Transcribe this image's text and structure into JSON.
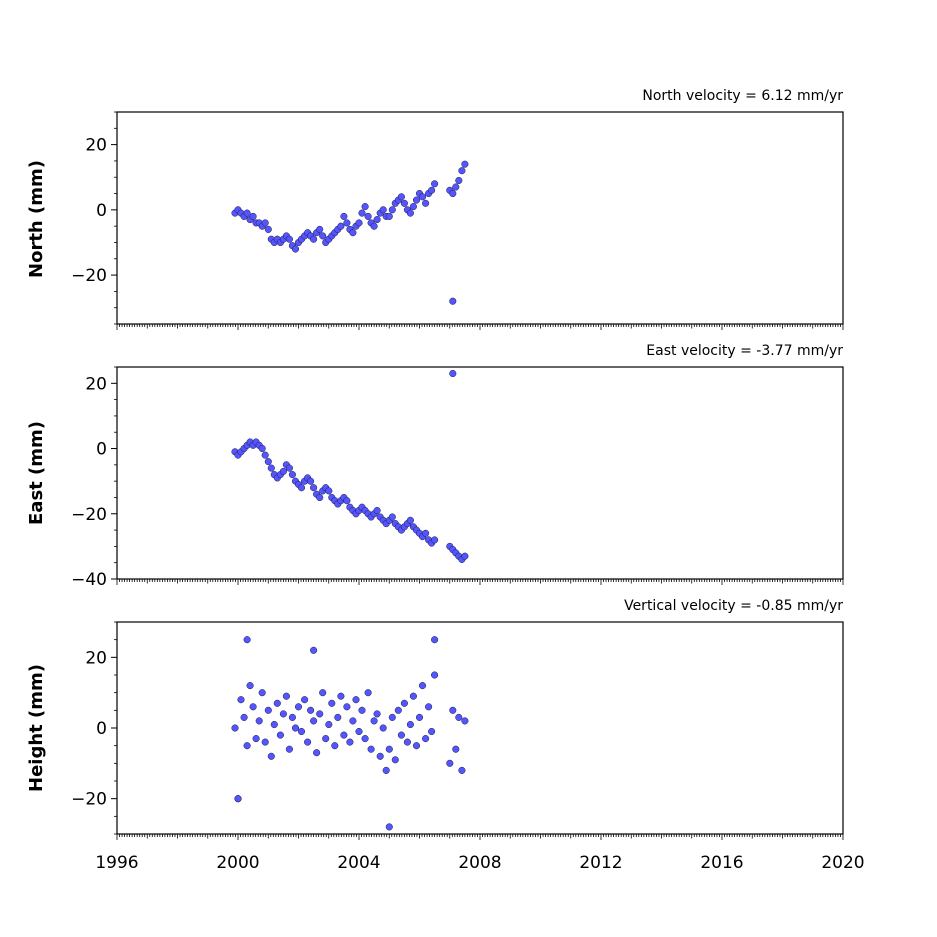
{
  "chart_data": [
    {
      "type": "scatter",
      "title": "North velocity = 6.12 mm/yr",
      "ylabel": "North (mm)",
      "ylim": [
        -35,
        30
      ],
      "yticks": [
        20,
        0,
        -20
      ],
      "yticklabels": [
        "20",
        "0",
        "−20"
      ],
      "xlim": [
        1996,
        2020
      ],
      "point_color": "#5555ff",
      "series": [
        {
          "x": [
            1999.9,
            2000.0,
            2000.1,
            2000.2,
            2000.3,
            2000.4,
            2000.5,
            2000.6,
            2000.7,
            2000.8,
            2000.9,
            2001.0,
            2001.1,
            2001.2,
            2001.3,
            2001.4,
            2001.5,
            2001.6,
            2001.7,
            2001.8,
            2001.9,
            2002.0,
            2002.1,
            2002.2,
            2002.3,
            2002.4,
            2002.5,
            2002.6,
            2002.7,
            2002.8,
            2002.9,
            2003.0,
            2003.1,
            2003.2,
            2003.3,
            2003.4,
            2003.5,
            2003.6,
            2003.7,
            2003.8,
            2003.9,
            2004.0,
            2004.1,
            2004.2,
            2004.3,
            2004.4,
            2004.5,
            2004.6,
            2004.7,
            2004.8,
            2004.9,
            2005.0,
            2005.1,
            2005.2,
            2005.3,
            2005.4,
            2005.5,
            2005.6,
            2005.7,
            2005.8,
            2005.9,
            2006.0,
            2006.1,
            2006.2,
            2006.3,
            2006.4,
            2006.5,
            2007.0,
            2007.1,
            2007.2,
            2007.3,
            2007.4,
            2007.5,
            2007.1
          ],
          "y": [
            -1,
            0,
            -1,
            -2,
            -1,
            -3,
            -2,
            -4,
            -4,
            -5,
            -4,
            -6,
            -9,
            -10,
            -9,
            -10,
            -9,
            -8,
            -9,
            -11,
            -12,
            -10,
            -9,
            -8,
            -7,
            -8,
            -9,
            -7,
            -6,
            -8,
            -10,
            -9,
            -8,
            -7,
            -6,
            -5,
            -2,
            -4,
            -6,
            -7,
            -5,
            -4,
            -1,
            1,
            -2,
            -4,
            -5,
            -3,
            -1,
            0,
            -2,
            -2,
            0,
            2,
            3,
            4,
            2,
            0,
            -1,
            1,
            3,
            5,
            4,
            2,
            5,
            6,
            8,
            6,
            5,
            7,
            9,
            12,
            14,
            -28
          ]
        }
      ]
    },
    {
      "type": "scatter",
      "title": "East velocity = -3.77 mm/yr",
      "ylabel": "East (mm)",
      "ylim": [
        -40,
        25
      ],
      "yticks": [
        20,
        0,
        -20,
        -40
      ],
      "yticklabels": [
        "20",
        "0",
        "−20",
        "−40"
      ],
      "xlim": [
        1996,
        2020
      ],
      "point_color": "#5555ff",
      "series": [
        {
          "x": [
            1999.9,
            2000.0,
            2000.1,
            2000.2,
            2000.3,
            2000.4,
            2000.5,
            2000.6,
            2000.7,
            2000.8,
            2000.9,
            2001.0,
            2001.1,
            2001.2,
            2001.3,
            2001.4,
            2001.5,
            2001.6,
            2001.7,
            2001.8,
            2001.9,
            2002.0,
            2002.1,
            2002.2,
            2002.3,
            2002.4,
            2002.5,
            2002.6,
            2002.7,
            2002.8,
            2002.9,
            2003.0,
            2003.1,
            2003.2,
            2003.3,
            2003.4,
            2003.5,
            2003.6,
            2003.7,
            2003.8,
            2003.9,
            2004.0,
            2004.1,
            2004.2,
            2004.3,
            2004.4,
            2004.5,
            2004.6,
            2004.7,
            2004.8,
            2004.9,
            2005.0,
            2005.1,
            2005.2,
            2005.3,
            2005.4,
            2005.5,
            2005.6,
            2005.7,
            2005.8,
            2005.9,
            2006.0,
            2006.1,
            2006.2,
            2006.3,
            2006.4,
            2006.5,
            2007.0,
            2007.1,
            2007.2,
            2007.3,
            2007.4,
            2007.5,
            2007.1
          ],
          "y": [
            -1,
            -2,
            -1,
            0,
            1,
            2,
            1,
            2,
            1,
            0,
            -2,
            -4,
            -6,
            -8,
            -9,
            -8,
            -7,
            -5,
            -6,
            -8,
            -10,
            -11,
            -12,
            -10,
            -9,
            -10,
            -12,
            -14,
            -15,
            -13,
            -12,
            -13,
            -15,
            -16,
            -17,
            -16,
            -15,
            -16,
            -18,
            -19,
            -20,
            -19,
            -18,
            -19,
            -20,
            -21,
            -20,
            -19,
            -21,
            -22,
            -23,
            -22,
            -21,
            -23,
            -24,
            -25,
            -24,
            -23,
            -22,
            -24,
            -25,
            -26,
            -27,
            -26,
            -28,
            -29,
            -28,
            -30,
            -31,
            -32,
            -33,
            -34,
            -33,
            23
          ]
        }
      ]
    },
    {
      "type": "scatter",
      "title": "Vertical velocity = -0.85 mm/yr",
      "ylabel": "Height (mm)",
      "ylim": [
        -30,
        30
      ],
      "yticks": [
        20,
        0,
        -20
      ],
      "yticklabels": [
        "20",
        "0",
        "−20"
      ],
      "xlim": [
        1996,
        2020
      ],
      "xticks": [
        1996,
        2000,
        2004,
        2008,
        2012,
        2016,
        2020
      ],
      "xticklabels": [
        "1996",
        "2000",
        "2004",
        "2008",
        "2012",
        "2016",
        "2020"
      ],
      "point_color": "#5555ff",
      "series": [
        {
          "x": [
            1999.9,
            2000.0,
            2000.1,
            2000.2,
            2000.3,
            2000.4,
            2000.5,
            2000.6,
            2000.7,
            2000.8,
            2000.9,
            2001.0,
            2001.1,
            2001.2,
            2001.3,
            2001.4,
            2001.5,
            2001.6,
            2001.7,
            2001.8,
            2001.9,
            2002.0,
            2002.1,
            2002.2,
            2002.3,
            2002.4,
            2002.5,
            2002.6,
            2002.7,
            2002.8,
            2002.9,
            2003.0,
            2003.1,
            2003.2,
            2003.3,
            2003.4,
            2003.5,
            2003.6,
            2003.7,
            2003.8,
            2003.9,
            2004.0,
            2004.1,
            2004.2,
            2004.3,
            2004.4,
            2004.5,
            2004.6,
            2004.7,
            2004.8,
            2004.9,
            2005.0,
            2005.1,
            2005.2,
            2005.3,
            2005.4,
            2005.5,
            2005.6,
            2005.7,
            2005.8,
            2005.9,
            2006.0,
            2006.1,
            2006.2,
            2006.3,
            2006.4,
            2006.5,
            2007.0,
            2007.1,
            2007.2,
            2007.3,
            2007.4,
            2007.5,
            2000.0,
            2000.3,
            2002.5,
            2006.5,
            2005.0
          ],
          "y": [
            0,
            -20,
            8,
            3,
            -5,
            12,
            6,
            -3,
            2,
            10,
            -4,
            5,
            -8,
            1,
            7,
            -2,
            4,
            9,
            -6,
            3,
            0,
            6,
            -1,
            8,
            -4,
            5,
            2,
            -7,
            4,
            10,
            -3,
            1,
            7,
            -5,
            3,
            9,
            -2,
            6,
            -4,
            2,
            8,
            -1,
            5,
            -3,
            10,
            -6,
            2,
            4,
            -8,
            0,
            -12,
            -6,
            3,
            -9,
            5,
            -2,
            7,
            -4,
            1,
            9,
            -5,
            3,
            12,
            -3,
            6,
            -1,
            15,
            -10,
            5,
            -6,
            3,
            -12,
            2,
            -20,
            25,
            22,
            25,
            -28
          ]
        }
      ]
    }
  ]
}
